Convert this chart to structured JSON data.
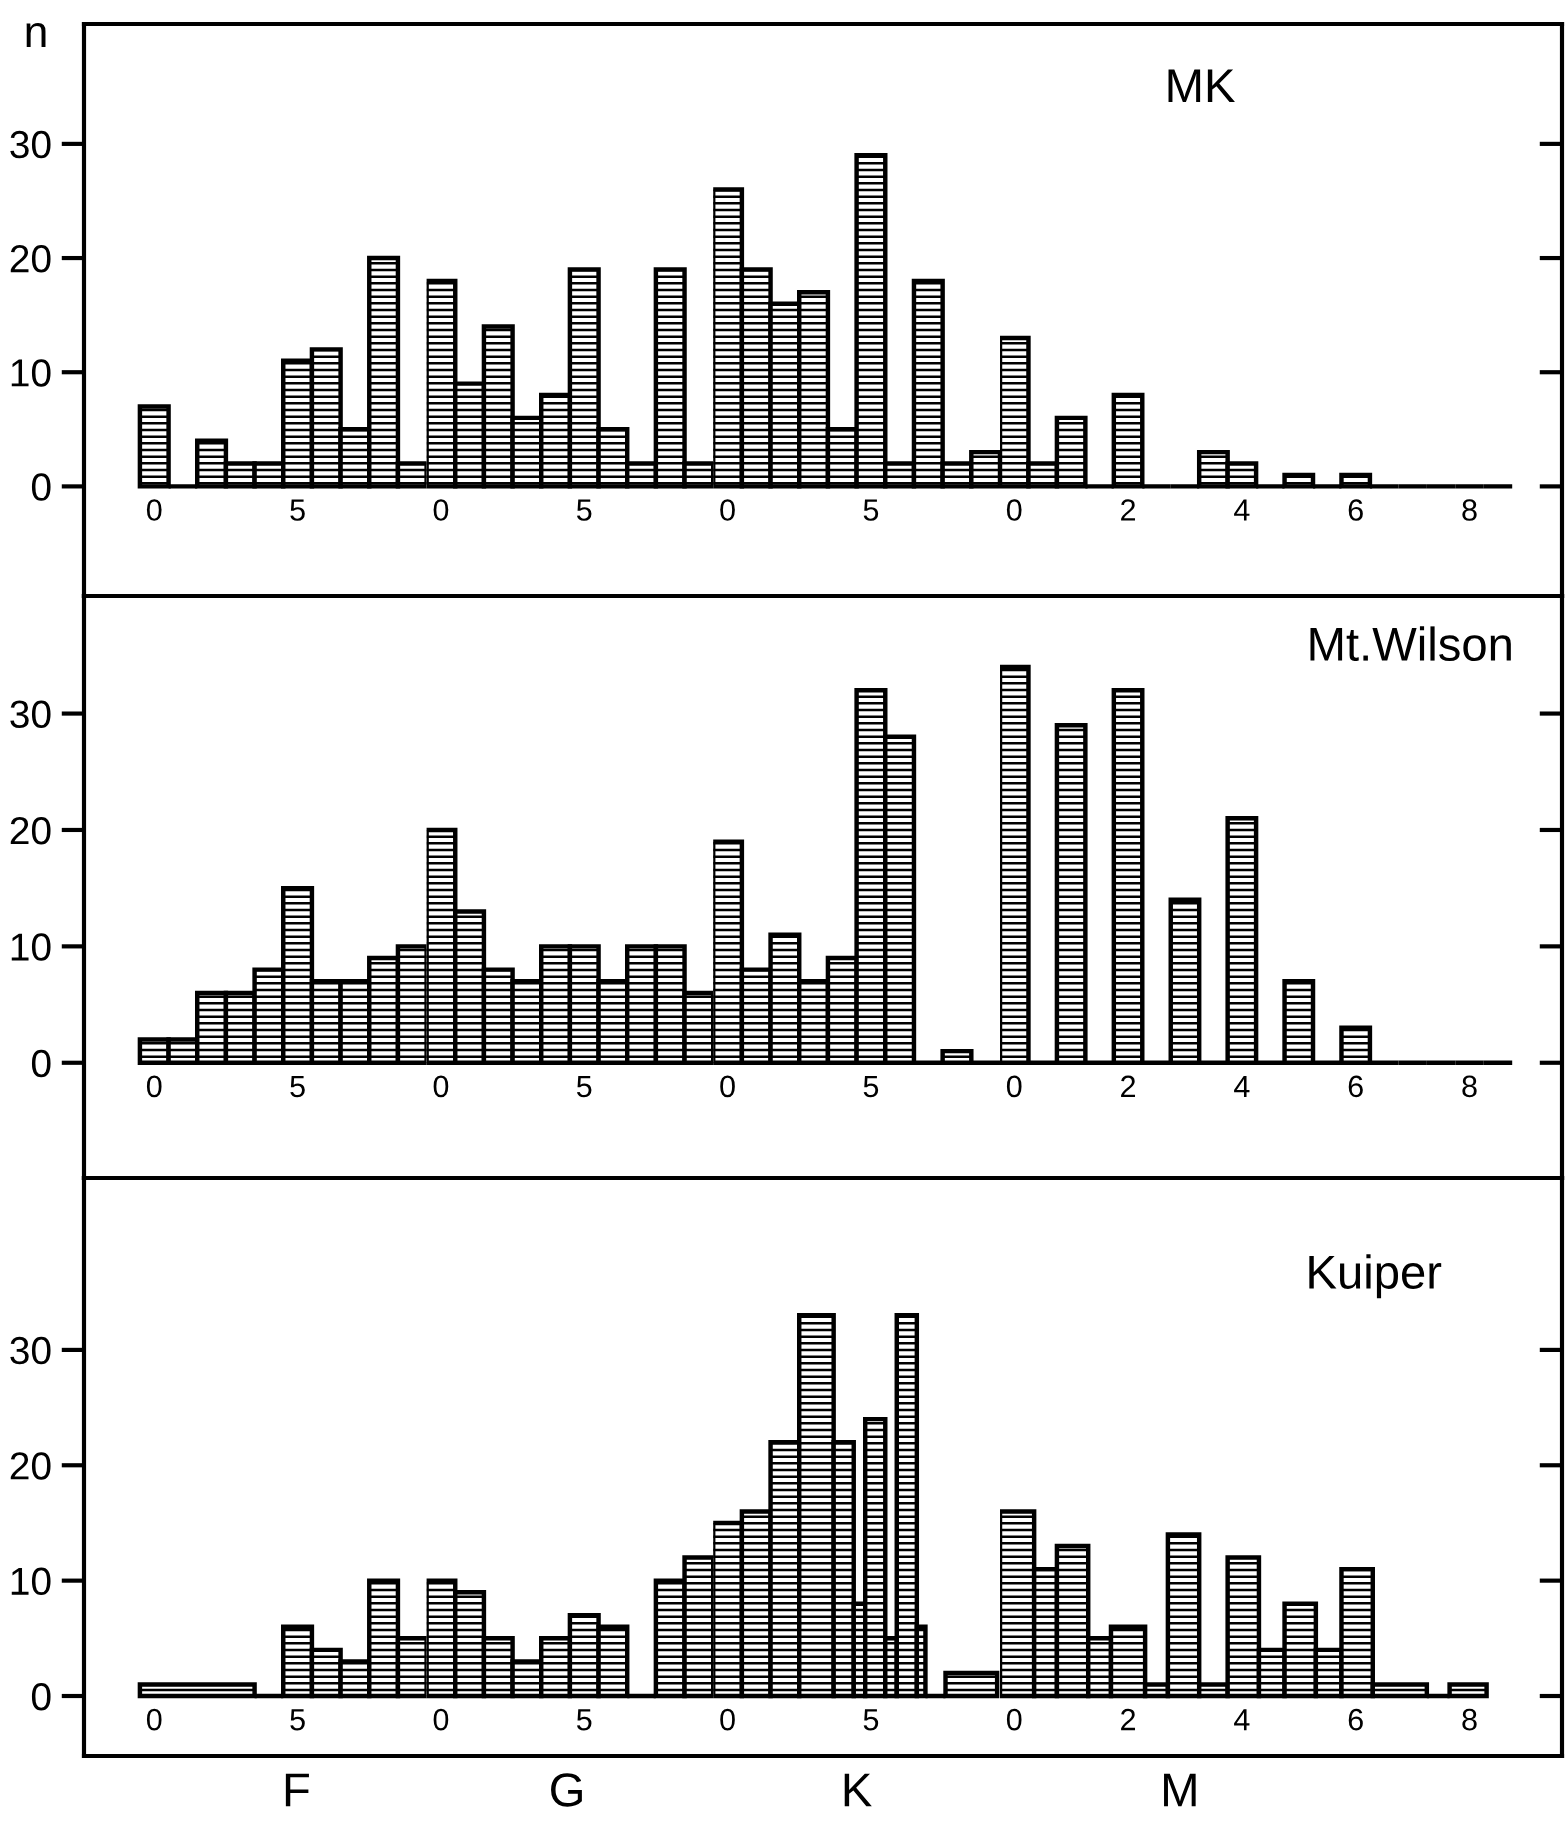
{
  "chart_data": [
    {
      "type": "histogram",
      "ylabel": "n",
      "color": "#000000",
      "bins": [
        -0.5,
        0.5,
        1.5,
        2.5,
        3.5,
        4.5,
        5.5,
        6.5,
        7.5,
        8.5,
        9.5
      ],
      "values": [
        7,
        0,
        4,
        2,
        2,
        11,
        12,
        5,
        20,
        2
      ],
      "xlim": [
        -2.45,
        9.5
      ],
      "ylim": [
        -9.6,
        40.5
      ],
      "yticks": [
        0,
        10,
        20,
        30
      ],
      "xticks": [
        0,
        5
      ]
    },
    {
      "type": "histogram",
      "color": "#000000",
      "bins": [
        -0.5,
        0.5,
        1.5,
        2.5,
        3.5,
        4.5,
        5.5,
        6.5,
        7.5,
        8.5,
        9.5
      ],
      "values": [
        18,
        9,
        14,
        6,
        8,
        19,
        5,
        2,
        19,
        2
      ],
      "xlim": [
        -0.5,
        9.5
      ],
      "ylim": [
        -9.6,
        40.5
      ],
      "xticks": [
        0,
        5
      ],
      "tick_labels": "x"
    },
    {
      "type": "histogram",
      "color": "#000000",
      "bins": [
        -0.5,
        0.5,
        1.5,
        2.5,
        3.5,
        4.5,
        5.5,
        6.5,
        7.5,
        8.5,
        9.5
      ],
      "values": [
        26,
        19,
        16,
        17,
        5,
        29,
        2,
        18,
        2,
        3
      ],
      "xlim": [
        -0.5,
        9.5
      ],
      "ylim": [
        -9.6,
        40.5
      ],
      "xticks": [
        0,
        5
      ],
      "tick_labels": "x"
    },
    {
      "type": "histogram",
      "title": "MK",
      "color": "#000000",
      "bins": [
        -0.25,
        0.25,
        0.75,
        1.25,
        1.75,
        2.25,
        2.75,
        3.25,
        3.75,
        4.25,
        4.75,
        5.25,
        5.75,
        6.25,
        6.75,
        7.25,
        7.75,
        8.25,
        8.75
      ],
      "values": [
        13,
        2,
        6,
        0,
        8,
        0,
        0,
        3,
        2,
        0,
        1,
        0,
        1,
        0,
        0,
        0,
        0,
        0
      ],
      "xlim": [
        -0.25,
        9.625
      ],
      "ylim": [
        -9.6,
        40.5
      ],
      "yticks": [
        0,
        10,
        20,
        30
      ],
      "xticks": [
        0,
        2,
        4,
        6,
        8
      ],
      "tick_labels": "x"
    },
    {
      "type": "histogram",
      "color": "#000000",
      "bins": [
        -0.5,
        0.5,
        1.5,
        2.5,
        3.5,
        4.5,
        5.5,
        6.5,
        7.5,
        8.5,
        9.5
      ],
      "values": [
        2,
        2,
        6,
        6,
        8,
        15,
        7,
        7,
        9,
        10
      ],
      "xlim": [
        -2.45,
        9.5
      ],
      "ylim": [
        -9.9,
        40.1
      ],
      "yticks": [
        0,
        10,
        20,
        30
      ],
      "xticks": [
        0,
        5
      ]
    },
    {
      "type": "histogram",
      "color": "#000000",
      "bins": [
        -0.5,
        0.5,
        1.5,
        2.5,
        3.5,
        4.5,
        5.5,
        6.5,
        7.5,
        8.5,
        9.5
      ],
      "values": [
        20,
        13,
        8,
        7,
        10,
        10,
        7,
        10,
        10,
        6
      ],
      "xlim": [
        -0.5,
        9.5
      ],
      "ylim": [
        -9.9,
        40.1
      ],
      "xticks": [
        0,
        5
      ],
      "tick_labels": "x"
    },
    {
      "type": "histogram",
      "color": "#000000",
      "bins": [
        -0.5,
        0.5,
        1.5,
        2.5,
        3.5,
        4.5,
        5.5,
        6.5,
        7.5,
        8.5,
        9.5
      ],
      "values": [
        19,
        8,
        11,
        7,
        9,
        32,
        28,
        0,
        1,
        0
      ],
      "xlim": [
        -0.5,
        9.5
      ],
      "ylim": [
        -9.9,
        40.1
      ],
      "xticks": [
        0,
        5
      ],
      "tick_labels": "x"
    },
    {
      "type": "histogram",
      "title": "Mt.Wilson",
      "color": "#000000",
      "bins": [
        -0.25,
        0.25,
        0.75,
        1.25,
        1.75,
        2.25,
        2.75,
        3.25,
        3.75,
        4.25,
        4.75,
        5.25,
        5.75,
        6.25,
        6.75,
        7.25,
        7.75,
        8.25,
        8.75
      ],
      "values": [
        34,
        0,
        29,
        0,
        32,
        0,
        14,
        0,
        21,
        0,
        7,
        0,
        3,
        0,
        0,
        0,
        0,
        0
      ],
      "xlim": [
        -0.25,
        9.625
      ],
      "ylim": [
        -9.9,
        40.1
      ],
      "yticks": [
        0,
        10,
        20,
        30
      ],
      "xticks": [
        0,
        2,
        4,
        6,
        8
      ],
      "tick_labels": "x"
    },
    {
      "type": "histogram",
      "xlabel": "F",
      "color": "#000000",
      "bins": [
        -0.5,
        3.5,
        4.5,
        5.5,
        6.5,
        7.5,
        8.5,
        9.5
      ],
      "values": [
        1,
        0,
        6,
        4,
        3,
        10,
        5
      ],
      "xlim": [
        -2.45,
        9.5
      ],
      "ylim": [
        -5.2,
        44.9
      ],
      "yticks": [
        0,
        10,
        20,
        30
      ],
      "xticks": [
        0,
        5
      ]
    },
    {
      "type": "histogram",
      "xlabel": "G",
      "color": "#000000",
      "bins": [
        -0.5,
        0.5,
        1.5,
        2.5,
        3.5,
        4.5,
        5.5,
        6.5,
        7.5,
        8.5,
        9.5
      ],
      "values": [
        10,
        9,
        5,
        3,
        5,
        7,
        6,
        0,
        10,
        12
      ],
      "xlim": [
        -0.5,
        9.5
      ],
      "ylim": [
        -5.2,
        44.9
      ],
      "xticks": [
        0,
        5
      ],
      "tick_labels": "x"
    },
    {
      "type": "histogram",
      "xlabel": "K",
      "color": "#000000",
      "bins": [
        -0.5,
        0.5,
        1.5,
        2.5,
        3.7,
        4.4,
        4.8,
        5.5,
        5.9,
        6.6,
        6.9,
        7.6,
        9.4
      ],
      "values": [
        15,
        16,
        22,
        33,
        22,
        8,
        24,
        5,
        33,
        6,
        0,
        2
      ],
      "xlim": [
        -0.5,
        9.5
      ],
      "ylim": [
        -5.2,
        44.9
      ],
      "xticks": [
        0,
        5
      ],
      "tick_labels": "x"
    },
    {
      "type": "histogram",
      "title": "Kuiper",
      "xlabel": "M",
      "color": "#000000",
      "bins": [
        -0.25,
        0.35,
        0.75,
        1.3,
        1.7,
        2.3,
        2.7,
        3.25,
        3.75,
        4.3,
        4.75,
        5.3,
        5.75,
        6.3,
        7.25,
        7.65,
        8.3
      ],
      "values": [
        16,
        11,
        13,
        5,
        6,
        1,
        14,
        1,
        12,
        4,
        8,
        4,
        11,
        1,
        0,
        1
      ],
      "xlim": [
        -0.25,
        9.625
      ],
      "ylim": [
        -5.2,
        44.9
      ],
      "yticks": [
        0,
        10,
        20,
        30
      ],
      "xticks": [
        0,
        2,
        4,
        6,
        8
      ],
      "tick_labels": "x"
    }
  ]
}
